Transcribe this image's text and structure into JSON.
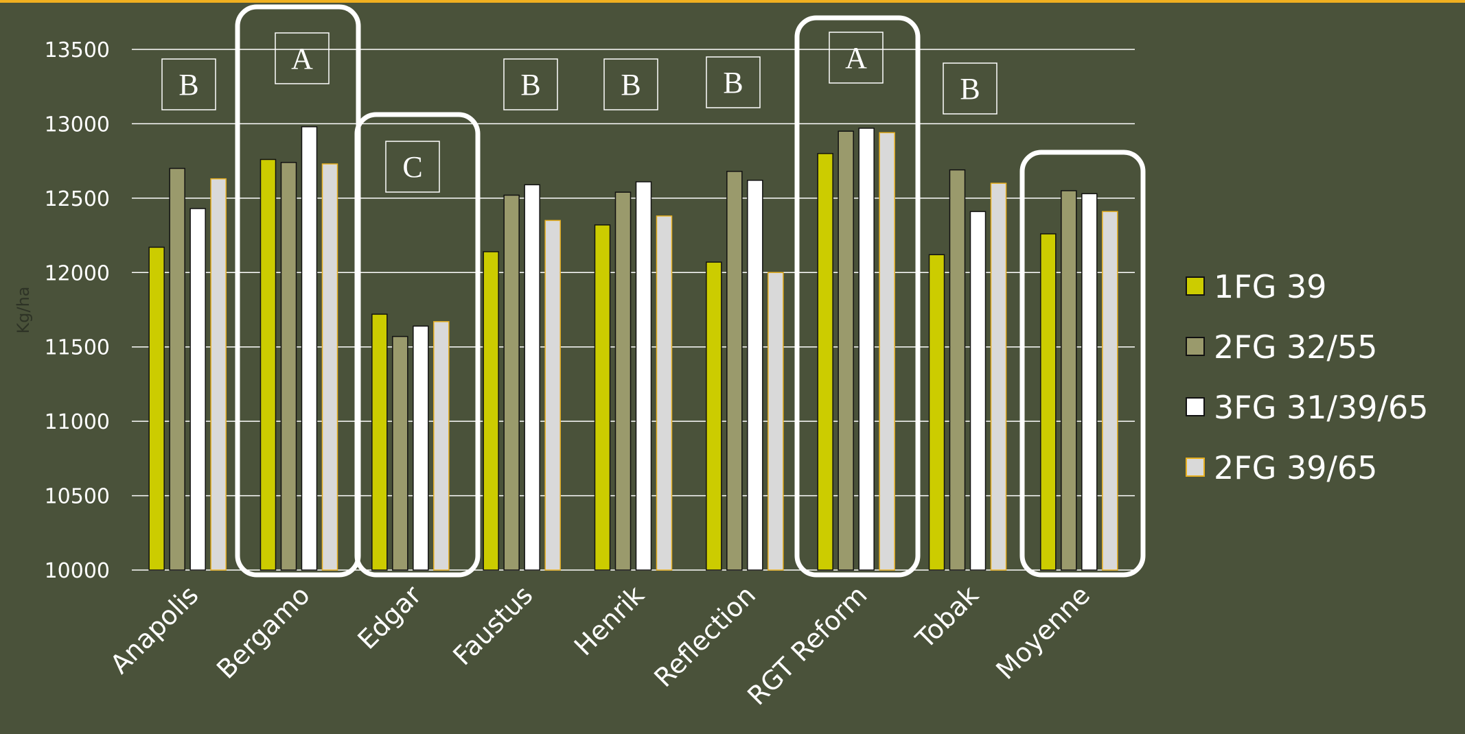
{
  "chart_data": {
    "type": "bar",
    "ylabel": "Kg/ha",
    "ylim": [
      10000,
      13500
    ],
    "yticks": [
      "10000",
      "10500",
      "11000",
      "11500",
      "12000",
      "12500",
      "13000",
      "13500"
    ],
    "grid": true,
    "legend_position": "right",
    "categories": [
      "Anapolis",
      "Bergamo",
      "Edgar",
      "Faustus",
      "Henrik",
      "Reflection",
      "RGT Reform",
      "Tobak",
      "Moyenne"
    ],
    "series": [
      {
        "name": "1FG 39",
        "color": "#cccc00",
        "values": [
          12170,
          12760,
          11720,
          12140,
          12320,
          12070,
          12800,
          12120,
          12260
        ]
      },
      {
        "name": "2FG 32/55",
        "color": "#9a9a6c",
        "values": [
          12700,
          12740,
          11570,
          12520,
          12540,
          12680,
          12950,
          12690,
          12550
        ]
      },
      {
        "name": "3FG 31/39/65",
        "color": "#ffffff",
        "values": [
          12430,
          12980,
          11640,
          12590,
          12610,
          12620,
          12970,
          12410,
          12530
        ]
      },
      {
        "name": "2FG 39/65",
        "color": "#d9d9d9",
        "values": [
          12630,
          12730,
          11670,
          12350,
          12380,
          12000,
          12940,
          12600,
          12410
        ]
      }
    ],
    "group_letters": [
      "B",
      "A",
      "C",
      "B",
      "B",
      "B",
      "A",
      "B",
      ""
    ],
    "highlighted_groups": [
      "Bergamo",
      "Edgar",
      "RGT Reform",
      "Moyenne"
    ]
  },
  "colors": {
    "background": "#4a523a",
    "accent_rule": "#f0b020",
    "grid": "#ffffff",
    "text": "#ffffff",
    "axis_label": "#2e3326"
  }
}
